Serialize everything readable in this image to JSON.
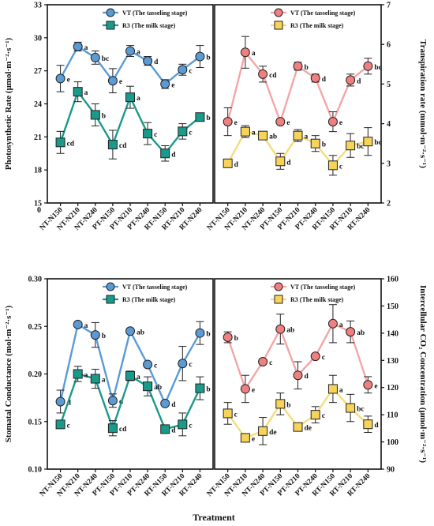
{
  "x_axis_label": "Treatment",
  "chart_data": [
    {
      "type": "line",
      "panel": "top-left",
      "ylabel": "Photosynthetic Rate  (μmol·m⁻²·s⁻¹)",
      "ylim": [
        15,
        33
      ],
      "yticks": [
        15,
        18,
        21,
        24,
        27,
        30,
        33
      ],
      "extra_tick": "0",
      "legend_position": "top-right",
      "categories": [
        "NT-N150",
        "NT-N210",
        "NT-N240",
        "PT-N150",
        "PT-N210",
        "PT-N240",
        "RT-N150",
        "RT-N210",
        "RT-N240"
      ],
      "series": [
        {
          "name": "VT (The tasseling stage)",
          "marker": "circle",
          "line_color": "#5b9bd5",
          "marker_color": "#5b9bd5",
          "values": [
            26.3,
            29.2,
            28.2,
            26.1,
            28.8,
            27.9,
            25.8,
            27.1,
            28.3
          ],
          "errors": [
            1.2,
            0.4,
            0.6,
            1.1,
            0.5,
            0.4,
            0.4,
            0.5,
            1.0
          ],
          "letters": [
            "e",
            "a",
            "bc",
            "e",
            "a",
            "d",
            "e",
            "c",
            "b"
          ]
        },
        {
          "name": "R3 (The milk stage)",
          "marker": "square",
          "line_color": "#1a9a8a",
          "marker_color": "#1a9a8a",
          "values": [
            20.5,
            25.1,
            23.0,
            20.3,
            24.6,
            21.3,
            19.5,
            21.5,
            22.8
          ],
          "errors": [
            1.0,
            0.9,
            1.0,
            1.3,
            1.0,
            1.0,
            0.7,
            0.7,
            0.3
          ],
          "letters": [
            "cd",
            "a",
            "b",
            "cd",
            "a",
            "c",
            "d",
            "c",
            "b"
          ]
        }
      ]
    },
    {
      "type": "line",
      "panel": "top-right",
      "ylabel": "Transpiration rate  (mmol·m⁻²·s⁻¹)",
      "ylim": [
        2,
        7
      ],
      "yticks": [
        2,
        3,
        4,
        5,
        6,
        7
      ],
      "legend_position": "top-right",
      "categories": [
        "NT-N150",
        "NT-N210",
        "NT-N240",
        "PT-N150",
        "PT-N210",
        "PT-N240",
        "RT-N150",
        "RT-N210",
        "RT-N240"
      ],
      "series": [
        {
          "name": "VT (The tasseling stage)",
          "marker": "circle",
          "line_color": "#f4a6a6",
          "marker_color": "#f08080",
          "values": [
            4.05,
            5.8,
            5.25,
            4.05,
            5.45,
            5.15,
            4.05,
            5.1,
            5.45
          ],
          "errors": [
            0.35,
            0.4,
            0.2,
            0.0,
            0.1,
            0.1,
            0.25,
            0.15,
            0.2
          ],
          "letters": [
            "e",
            "a",
            "cd",
            "e",
            "b",
            "d",
            "e",
            "d",
            "bc"
          ]
        },
        {
          "name": "R3 (The milk stage)",
          "marker": "square",
          "line_color": "#f5dc7a",
          "marker_color": "#f8d35a",
          "values": [
            3.0,
            3.8,
            3.7,
            3.05,
            3.7,
            3.5,
            2.95,
            3.45,
            3.55
          ],
          "errors": [
            0.05,
            0.15,
            0.05,
            0.2,
            0.15,
            0.2,
            0.25,
            0.3,
            0.35
          ],
          "letters": [
            "d",
            "a",
            "ab",
            "d",
            "a",
            "b",
            "c",
            "bc",
            "bc"
          ]
        }
      ]
    },
    {
      "type": "line",
      "panel": "bottom-left",
      "ylabel": "Stomatal Conductance  (mol·m⁻²·s⁻¹)",
      "ylim": [
        0.1,
        0.3
      ],
      "yticks": [
        "0.10",
        "0.15",
        "0.20",
        "0.25",
        "0.30"
      ],
      "legend_position": "top-right",
      "categories": [
        "NT-N150",
        "NT-N210",
        "NT-N240",
        "PT-N150",
        "PT-N210",
        "PT-N240",
        "RT-N150",
        "RT-N210",
        "RT-N240"
      ],
      "series": [
        {
          "name": "VT (The tasseling stage)",
          "marker": "circle",
          "line_color": "#5b9bd5",
          "marker_color": "#5b9bd5",
          "values": [
            0.171,
            0.252,
            0.241,
            0.172,
            0.245,
            0.21,
            0.169,
            0.211,
            0.243
          ],
          "errors": [
            0.012,
            0.0,
            0.013,
            0.007,
            0.0,
            0.0,
            0.0,
            0.018,
            0.012
          ],
          "letters": [
            "d",
            "a",
            "b",
            "d",
            "ab",
            "c",
            "d",
            "c",
            "b"
          ]
        },
        {
          "name": "R3 (The milk stage)",
          "marker": "square",
          "line_color": "#1a9a8a",
          "marker_color": "#1a9a8a",
          "values": [
            0.147,
            0.2,
            0.195,
            0.143,
            0.198,
            0.187,
            0.142,
            0.147,
            0.185
          ],
          "errors": [
            0.0,
            0.008,
            0.01,
            0.008,
            0.005,
            0.01,
            0.0,
            0.012,
            0.012
          ],
          "letters": [
            "c",
            "a",
            "a",
            "cd",
            "a",
            "ab",
            "d",
            "c",
            "b"
          ]
        }
      ]
    },
    {
      "type": "line",
      "panel": "bottom-right",
      "ylabel": "Intercellular CO₂ Concentration  (μmol·m⁻²·s⁻¹)",
      "ylim": [
        90,
        160
      ],
      "yticks": [
        90,
        100,
        110,
        120,
        130,
        140,
        150,
        160
      ],
      "legend_position": "top-right",
      "categories": [
        "NT-N150",
        "NT-N210",
        "NT-N240",
        "PT-N150",
        "PT-N210",
        "PT-N240",
        "RT-N150",
        "RT-N210",
        "RT-N240"
      ],
      "series": [
        {
          "name": "VT (The tasseling stage)",
          "marker": "circle",
          "line_color": "#f4a6a6",
          "marker_color": "#f08080",
          "values": [
            138.5,
            119.5,
            129.5,
            141.5,
            124.5,
            131.5,
            143.5,
            140.5,
            121.0
          ],
          "errors": [
            2.0,
            5.0,
            0.0,
            5.5,
            5.0,
            0.0,
            7.0,
            4.0,
            3.0
          ],
          "letters": [
            "b",
            "e",
            "c",
            "ab",
            "d",
            "c",
            "a",
            "ab",
            "e"
          ]
        },
        {
          "name": "R3 (The milk stage)",
          "marker": "square",
          "line_color": "#f5dc7a",
          "marker_color": "#f8d35a",
          "values": [
            110.5,
            101.5,
            104.0,
            114.0,
            105.5,
            110.0,
            119.5,
            112.5,
            106.5
          ],
          "errors": [
            4.0,
            0.0,
            5.0,
            4.0,
            0.0,
            3.0,
            5.0,
            5.0,
            3.0
          ],
          "letters": [
            "c",
            "e",
            "de",
            "b",
            "de",
            "c",
            "a",
            "bc",
            "d"
          ]
        }
      ]
    }
  ]
}
